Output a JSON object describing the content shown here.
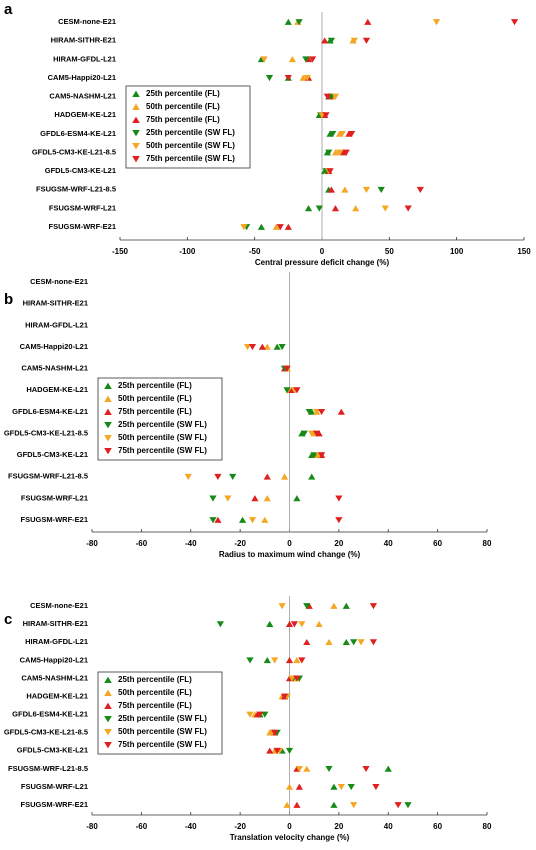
{
  "chart_data": [
    {
      "type": "scatter",
      "label": "a",
      "x_label": "Central pressure deficit change (%)",
      "categories": [
        "CESM-none-E21",
        "HIRAM-SITHR-E21",
        "HIRAM-GFDL-L21",
        "CAM5-Happi20-L21",
        "CAM5-NASHM-L21",
        "HADGEM-KE-L21",
        "GFDL6-ESM4-KE-L21",
        "GFDL5-CM3-KE-L21-8.5",
        "GFDL5-CM3-KE-L21",
        "FSUGSM-WRF-L21-8.5",
        "FSUGSM-WRF-L21",
        "FSUGSM-WRF-E21"
      ],
      "xlim": [
        -150,
        150
      ],
      "xticks": [
        -150,
        -100,
        -50,
        0,
        50,
        100,
        150
      ],
      "legend": "upper left",
      "series": [
        {
          "name": "25th percentile (FL)",
          "color": "#178a17",
          "marker": "triangle-up",
          "values": [
            -25,
            6,
            -45,
            -25,
            5,
            -2,
            6,
            4,
            2,
            5,
            -10,
            -45
          ]
        },
        {
          "name": "50th percentile (FL)",
          "color": "#f5a623",
          "marker": "triangle-up",
          "values": [
            -18,
            23,
            -22,
            -14,
            8,
            1,
            13,
            10,
            4,
            17,
            25,
            -34
          ]
        },
        {
          "name": "75th percentile (FL)",
          "color": "#e02020",
          "marker": "triangle-up",
          "values": [
            34,
            2,
            -10,
            -10,
            6,
            2,
            20,
            16,
            5,
            7,
            10,
            -25
          ]
        },
        {
          "name": "25th percentile (SW FL)",
          "color": "#178a17",
          "marker": "triangle-down",
          "values": [
            -17,
            7,
            -12,
            -39,
            7,
            -1,
            8,
            5,
            3,
            44,
            -2,
            -56
          ]
        },
        {
          "name": "50th percentile (SW FL)",
          "color": "#f5a623",
          "marker": "triangle-down",
          "values": [
            85,
            24,
            -43,
            -11,
            10,
            0,
            15,
            13,
            5,
            33,
            47,
            -58
          ]
        },
        {
          "name": "75th percentile (SW FL)",
          "color": "#e02020",
          "marker": "triangle-down",
          "values": [
            143,
            33,
            -7,
            -25,
            4,
            3,
            22,
            18,
            6,
            73,
            64,
            -31
          ]
        }
      ]
    },
    {
      "type": "scatter",
      "label": "b",
      "x_label": "Radius to maximum wind change (%)",
      "categories": [
        "CESM-none-E21",
        "HIRAM-SITHR-E21",
        "HIRAM-GFDL-L21",
        "CAM5-Happi20-L21",
        "CAM5-NASHM-L21",
        "HADGEM-KE-L21",
        "GFDL6-ESM4-KE-L21",
        "GFDL5-CM3-KE-L21-8.5",
        "GFDL5-CM3-KE-L21",
        "FSUGSM-WRF-L21-8.5",
        "FSUGSM-WRF-L21",
        "FSUGSM-WRF-E21"
      ],
      "xlim": [
        -80,
        80
      ],
      "xticks": [
        -80,
        -60,
        -40,
        -20,
        0,
        20,
        40,
        60,
        80
      ],
      "legend": "center left",
      "series": [
        {
          "name": "25th percentile (FL)",
          "color": "#178a17",
          "marker": "triangle-up",
          "values": [
            null,
            null,
            null,
            -5,
            -1,
            1,
            9,
            5,
            9,
            9,
            3,
            -19
          ]
        },
        {
          "name": "50th percentile (FL)",
          "color": "#f5a623",
          "marker": "triangle-up",
          "values": [
            null,
            null,
            null,
            -9,
            -1,
            0,
            11,
            10,
            11,
            -2,
            -9,
            -10
          ]
        },
        {
          "name": "75th percentile (FL)",
          "color": "#e02020",
          "marker": "triangle-up",
          "values": [
            null,
            null,
            null,
            -11,
            -2,
            1,
            21,
            12,
            13,
            -9,
            -14,
            -29
          ]
        },
        {
          "name": "25th percentile (SW FL)",
          "color": "#178a17",
          "marker": "triangle-down",
          "values": [
            null,
            null,
            null,
            -3,
            -2,
            -1,
            8,
            6,
            10,
            -23,
            -31,
            -31
          ]
        },
        {
          "name": "50th percentile (SW FL)",
          "color": "#f5a623",
          "marker": "triangle-down",
          "values": [
            null,
            null,
            null,
            -17,
            -1,
            2,
            11,
            9,
            12,
            -41,
            -25,
            -15
          ]
        },
        {
          "name": "75th percentile (SW FL)",
          "color": "#e02020",
          "marker": "triangle-down",
          "values": [
            null,
            null,
            null,
            -15,
            -1,
            3,
            13,
            11,
            13,
            -29,
            20,
            20
          ]
        }
      ]
    },
    {
      "type": "scatter",
      "label": "c",
      "x_label": "Translation velocity change (%)",
      "categories": [
        "CESM-none-E21",
        "HIRAM-SITHR-E21",
        "HIRAM-GFDL-L21",
        "CAM5-Happi20-L21",
        "CAM5-NASHM-L21",
        "HADGEM-KE-L21",
        "GFDL6-ESM4-KE-L21",
        "GFDL5-CM3-KE-L21-8.5",
        "GFDL5-CM3-KE-L21",
        "FSUGSM-WRF-L21-8.5",
        "FSUGSM-WRF-L21",
        "FSUGSM-WRF-E21"
      ],
      "xlim": [
        -80,
        80
      ],
      "xticks": [
        -80,
        -60,
        -40,
        -20,
        0,
        20,
        40,
        60,
        80
      ],
      "legend": "center left",
      "series": [
        {
          "name": "25th percentile (FL)",
          "color": "#178a17",
          "marker": "triangle-up",
          "values": [
            23,
            -8,
            23,
            -9,
            2,
            -2,
            -12,
            -7,
            -3,
            40,
            18,
            18
          ]
        },
        {
          "name": "50th percentile (FL)",
          "color": "#f5a623",
          "marker": "triangle-up",
          "values": [
            18,
            12,
            16,
            3,
            3,
            -3,
            -14,
            -8,
            -6,
            7,
            0,
            -1
          ]
        },
        {
          "name": "75th percentile (FL)",
          "color": "#e02020",
          "marker": "triangle-up",
          "values": [
            8,
            0,
            7,
            0,
            0,
            -2,
            -13,
            -6,
            -8,
            3,
            4,
            3
          ]
        },
        {
          "name": "25th percentile (SW FL)",
          "color": "#178a17",
          "marker": "triangle-down",
          "values": [
            7,
            -28,
            26,
            -16,
            4,
            -1,
            -10,
            -5,
            0,
            16,
            25,
            48
          ]
        },
        {
          "name": "50th percentile (SW FL)",
          "color": "#f5a623",
          "marker": "triangle-down",
          "values": [
            -3,
            5,
            29,
            -6,
            1,
            -1,
            -16,
            -7,
            -4,
            4,
            21,
            26
          ]
        },
        {
          "name": "75th percentile (SW FL)",
          "color": "#e02020",
          "marker": "triangle-down",
          "values": [
            34,
            2,
            34,
            5,
            3,
            -2,
            -12,
            -6,
            -5,
            31,
            35,
            44
          ]
        }
      ]
    }
  ]
}
